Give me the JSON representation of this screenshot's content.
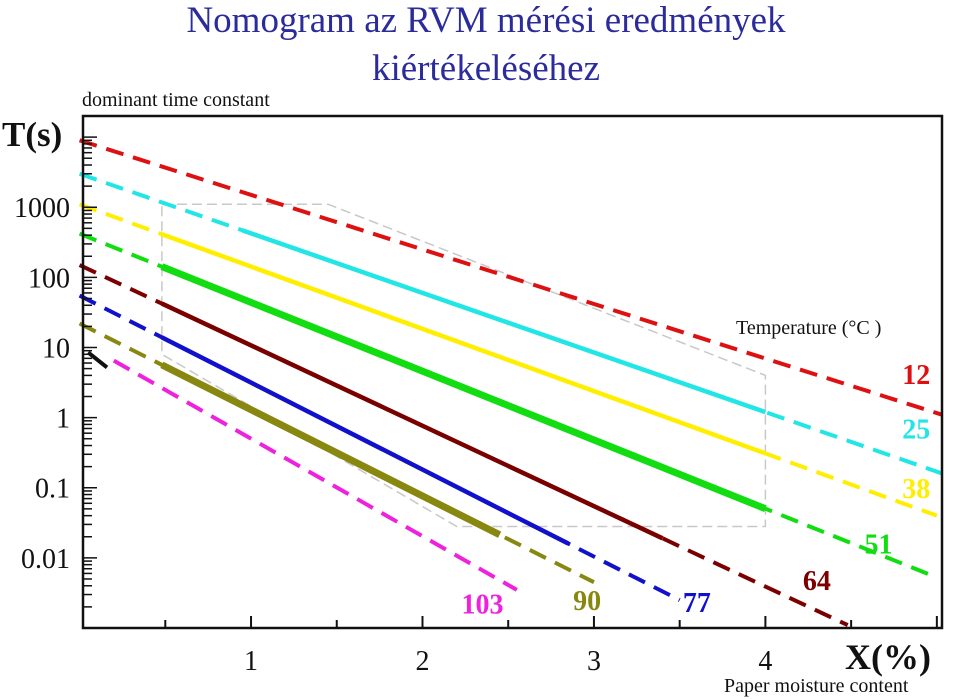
{
  "chart_data": {
    "type": "line",
    "title": "Nomogram az RVM mérési eredmények kiértékeléséhez",
    "title_lines": [
      "Nomogram az RVM mérési eredmények",
      "kiértékeléséhez"
    ],
    "ylabel": "T(s)",
    "ylabel_sub": "dominant time constant",
    "xlabel": "X(%)",
    "xlabel_sub": "Paper moisture content",
    "legend_title": "Temperature (°C )",
    "y_scale": "log",
    "xlim": [
      0.02,
      5.03
    ],
    "ylim": [
      0.001,
      20000
    ],
    "x_ticks": [
      {
        "value": 1,
        "label": "1"
      },
      {
        "value": 2,
        "label": "2"
      },
      {
        "value": 3,
        "label": "3"
      },
      {
        "value": 4,
        "label": "4"
      }
    ],
    "y_ticks": [
      {
        "value": 1000,
        "label": "1000"
      },
      {
        "value": 100,
        "label": "100"
      },
      {
        "value": 10,
        "label": "10"
      },
      {
        "value": 1,
        "label": "1"
      },
      {
        "value": 0.1,
        "label": "0.1"
      },
      {
        "value": 0.01,
        "label": "0.01"
      }
    ],
    "valid_region": [
      [
        0.48,
        1100
      ],
      [
        1.45,
        1100
      ],
      [
        4.0,
        4
      ],
      [
        4.0,
        0.028
      ],
      [
        2.2,
        0.028
      ],
      [
        0.48,
        8
      ]
    ],
    "series": [
      {
        "name": "12",
        "color": "#dd1111",
        "x_start": 0.0,
        "x_end": 5.03,
        "y_start": 9000,
        "y_end": 1.1,
        "solid_from": null,
        "solid_to": null,
        "label_x": 4.88,
        "label_y": 3.0
      },
      {
        "name": "25",
        "color": "#22e6e6",
        "x_start": 0.0,
        "x_end": 5.03,
        "y_start": 3000,
        "y_end": 0.16,
        "solid_from": 0.95,
        "solid_to": 4.0,
        "label_x": 4.88,
        "label_y": 0.5
      },
      {
        "name": "38",
        "color": "#ffee00",
        "x_start": 0.0,
        "x_end": 5.0,
        "y_start": 1100,
        "y_end": 0.04,
        "solid_from": 0.48,
        "solid_to": 4.0,
        "label_x": 4.88,
        "label_y": 0.072
      },
      {
        "name": "51",
        "color": "#11dd11",
        "x_start": 0.0,
        "x_end": 4.98,
        "y_start": 420,
        "y_end": 0.0055,
        "solid_from": 0.48,
        "solid_to": 4.0,
        "label_x": 4.66,
        "label_y": 0.0115
      },
      {
        "name": "64",
        "color": "#7a0000",
        "x_start": 0.0,
        "x_end": 4.48,
        "y_start": 150,
        "y_end": 0.0011,
        "solid_from": 0.48,
        "solid_to": 3.4,
        "label_x": 4.3,
        "label_y": 0.0035
      },
      {
        "name": "77",
        "color": "#1111cc",
        "x_start": 0.0,
        "x_end": 3.5,
        "y_start": 55,
        "y_end": 0.0025,
        "solid_from": 0.48,
        "solid_to": 2.85,
        "label_x": 3.6,
        "label_y": 0.0017
      },
      {
        "name": "90",
        "color": "#888811",
        "x_start": 0.0,
        "x_end": 3.0,
        "y_start": 22,
        "y_end": 0.0045,
        "solid_from": 0.48,
        "solid_to": 2.45,
        "label_x": 2.96,
        "label_y": 0.0018
      },
      {
        "name": "103",
        "color": "#ee22dd",
        "x_start": 0.2,
        "x_end": 2.55,
        "y_start": 6.5,
        "y_end": 0.0035,
        "solid_from": null,
        "solid_to": null,
        "label_x": 2.35,
        "label_y": 0.0016
      }
    ],
    "extra_stub": {
      "color": "#111111",
      "x_start": 0.05,
      "x_end": 0.16,
      "y_start": 8.5,
      "y_end": 5.2
    }
  }
}
